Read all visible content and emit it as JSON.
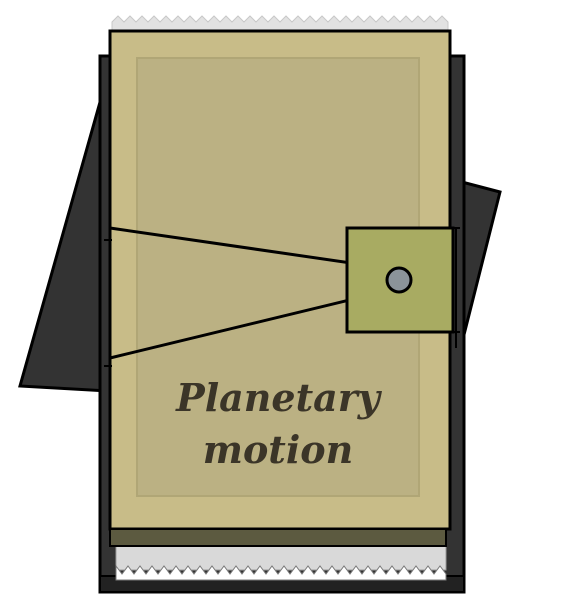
{
  "book": {
    "title_line_1": "Planetary",
    "title_line_2": "motion"
  },
  "colors": {
    "cover": "#c8bc88",
    "cover_inset": "#bbb183",
    "clasp": "#a8ab62",
    "stud": "#8b939a",
    "dark_back": "#333333",
    "outline": "#000000",
    "page_edge": "#dddddd",
    "title": "#3b3528"
  }
}
